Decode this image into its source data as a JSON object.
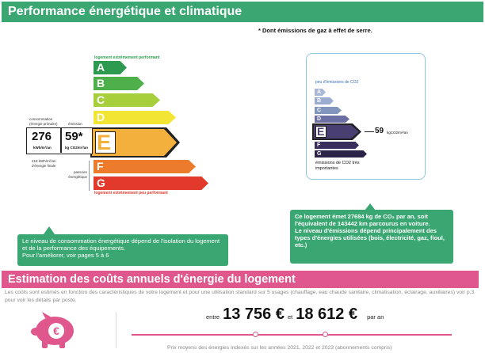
{
  "header": {
    "title": "Performance énergétique et climatique"
  },
  "ges_note": "* Dont émissions de gaz à effet de serre.",
  "energy": {
    "top_label": "logement extrêmement performant",
    "bottom_label": "logement extrêmement peu performant",
    "classes": [
      "A",
      "B",
      "C",
      "D",
      "E",
      "F",
      "G"
    ],
    "colors": [
      "#2d9b4f",
      "#4db04a",
      "#a7cf3b",
      "#f3e533",
      "#f4b03c",
      "#ec7b2c",
      "#e13a2c"
    ],
    "current_class": "E",
    "consumption_label": "consommation (énergie primaire)",
    "emission_label": "émission",
    "consumption_value": "276",
    "consumption_unit": "kWh/m²/an",
    "emission_value": "59*",
    "emission_unit": "kg CO2/m²/an",
    "final_energy_note": "218 kWh/m²/an d'énergie finale",
    "passoire_label": "passoire énergétique"
  },
  "co2": {
    "top_label": "peu d'émissions de CO2",
    "bottom_label": "émissions de CO2 très importantes",
    "classes": [
      "A",
      "B",
      "C",
      "D",
      "E",
      "F",
      "G"
    ],
    "colors": [
      "#a8b8d6",
      "#9aaccf",
      "#8295bd",
      "#6c6fa3",
      "#4a3f73",
      "#3a2e5c",
      "#2b2348"
    ],
    "current_class": "E",
    "value": "59",
    "unit": "kgCO2/m²/an"
  },
  "callout_left": {
    "text": "Le niveau de consommation énergétique dépend de l'isolation du logement et de la performance des équipements.",
    "link": "Pour l'améliorer, voir pages 5 à 6"
  },
  "callout_right": {
    "line1": "Ce logement émet 27684  kg de CO₂ par an, soit l'équivalent de 143442 km parcourus en voiture.",
    "line2": "Le niveau d'émissions dépend principalement des types d'énergies utilisées (bois, électricité, gaz, fioul, etc.)"
  },
  "costs": {
    "title": "Estimation des coûts annuels d'énergie du logement",
    "description": "Les coûts sont estimés en fonction des caractéristiques de votre logement et pour une utilisation standard sur 5 usages (chauffage, eau chaude sanitaire, climatisation, éclairage, auxiliaires) voir p.3 pour voir les détails par poste.",
    "between": "entre",
    "low": "13 756 €",
    "and": "et",
    "high": "18 612 €",
    "per_year": "par an",
    "price_note": "Prix moyens des énergies indexés sur les années 2021, 2022 et 2023  (abonnements compris)"
  }
}
